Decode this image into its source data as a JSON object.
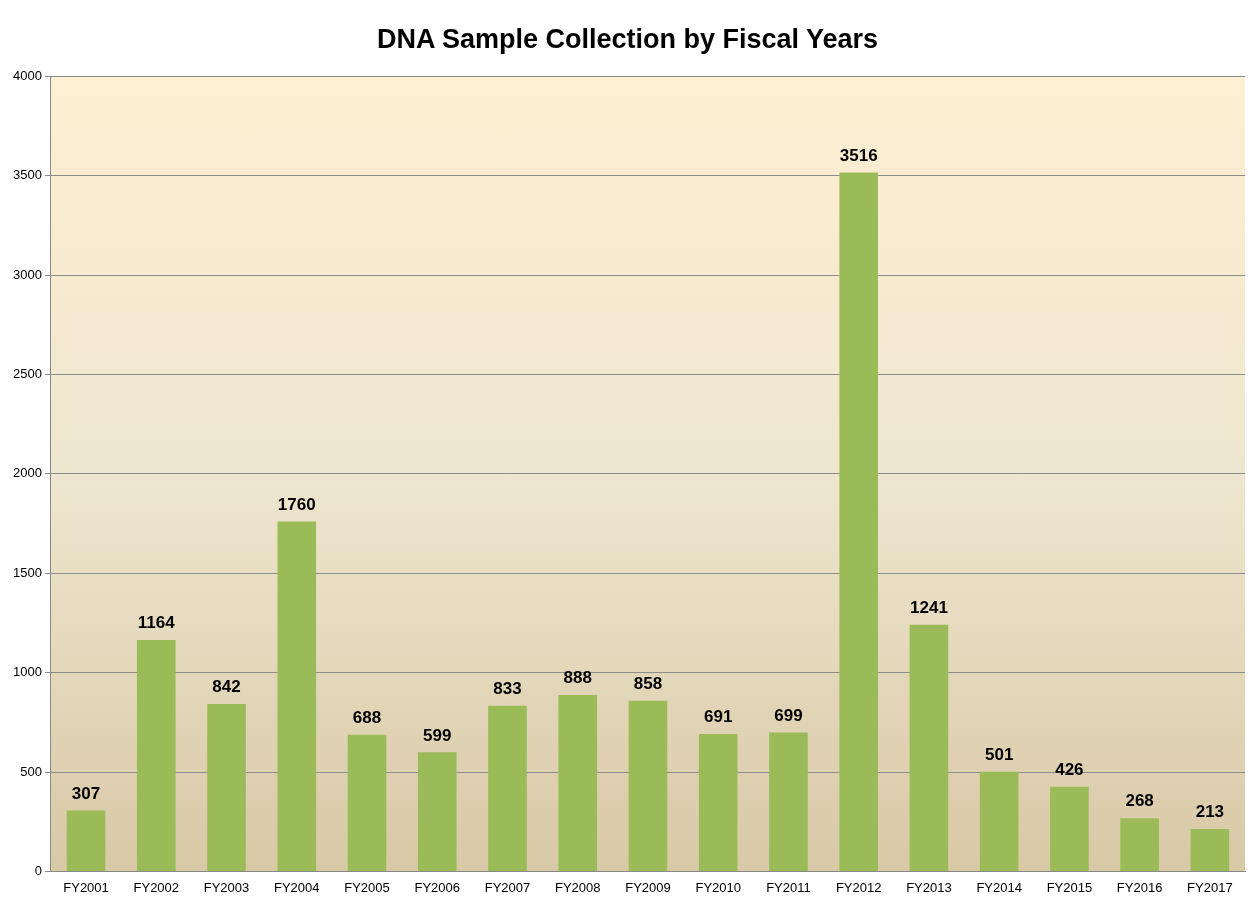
{
  "chart_data": {
    "type": "bar",
    "title": "DNA Sample Collection by Fiscal Years",
    "categories": [
      "FY2001",
      "FY2002",
      "FY2003",
      "FY2004",
      "FY2005",
      "FY2006",
      "FY2007",
      "FY2008",
      "FY2009",
      "FY2010",
      "FY2011",
      "FY2012",
      "FY2013",
      "FY2014",
      "FY2015",
      "FY2016",
      "FY2017"
    ],
    "values": [
      307,
      1164,
      842,
      1760,
      688,
      599,
      833,
      888,
      858,
      691,
      699,
      3516,
      1241,
      501,
      426,
      268,
      213
    ],
    "color": "#9bbb59",
    "ylim": [
      0,
      4000
    ],
    "yticks": [
      0,
      500,
      1000,
      1500,
      2000,
      2500,
      3000,
      3500,
      4000
    ],
    "grid": "y",
    "data_labels": true,
    "legend": false
  }
}
